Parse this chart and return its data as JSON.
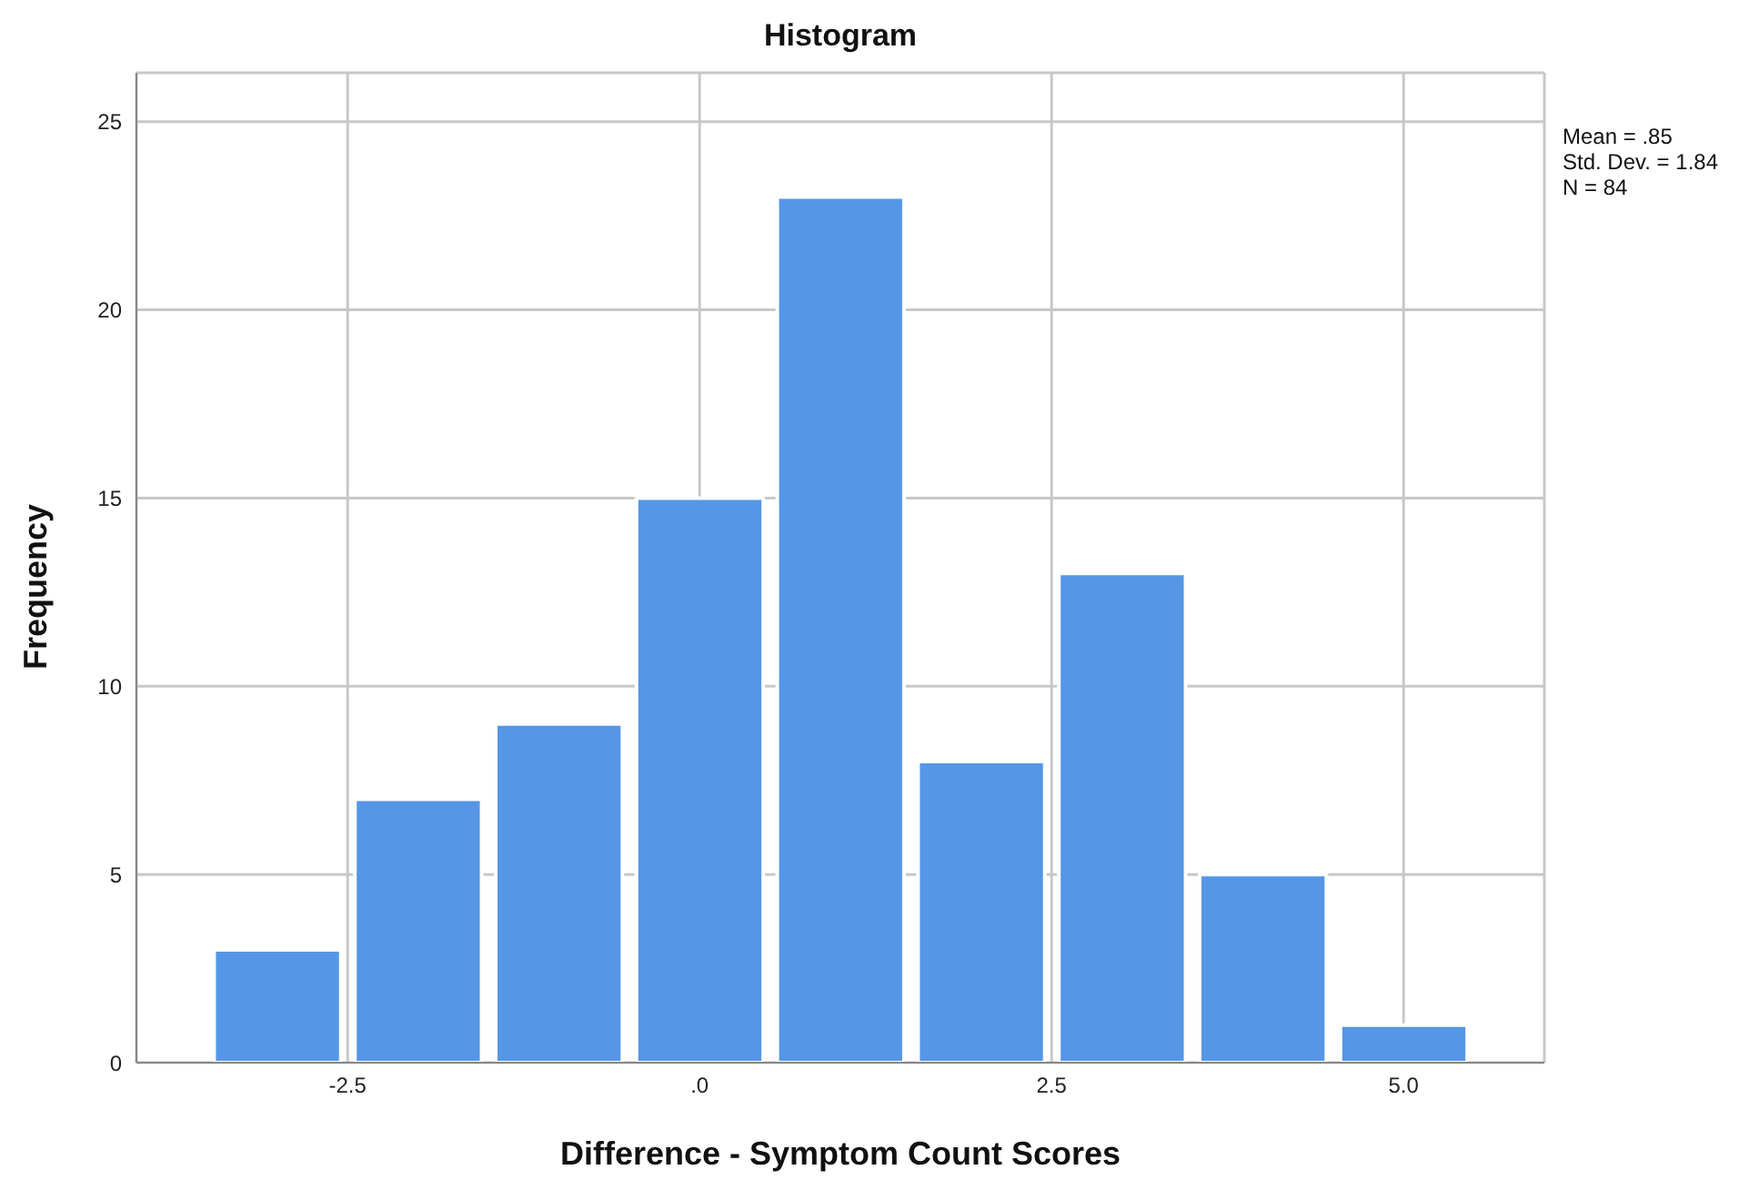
{
  "chart_data": {
    "type": "histogram",
    "title": "Histogram",
    "xlabel": "Difference - Symptom Count Scores",
    "ylabel": "Frequency",
    "bins": [
      -3.5,
      -2.5,
      -1.5,
      -0.5,
      0.5,
      1.5,
      2.5,
      3.5,
      4.5,
      5.5
    ],
    "values": [
      3,
      7,
      9,
      15,
      23,
      8,
      13,
      5,
      1
    ],
    "color": "#5596e6",
    "xlim": [
      -4,
      6
    ],
    "xticks": [
      -2.5,
      {
        "value": 0,
        "label": ".0"
      },
      2.5,
      {
        "value": 5,
        "label": "5.0"
      }
    ],
    "ylim": [
      0,
      26.3
    ],
    "yticks": [
      0,
      5,
      10,
      15,
      20,
      25
    ],
    "grid": true,
    "annotations": [
      "Mean = .85",
      "Std. Dev. = 1.84",
      "N = 84"
    ]
  }
}
